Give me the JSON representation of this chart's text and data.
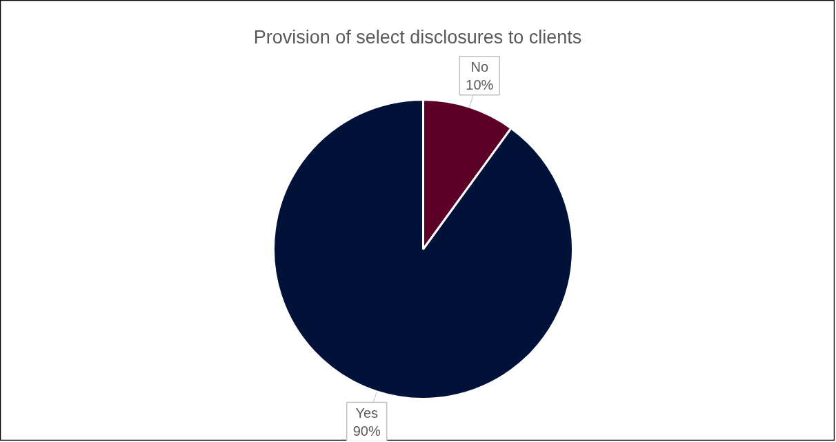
{
  "chart_data": {
    "type": "pie",
    "title": "Provision of select disclosures to clients",
    "categories": [
      "No",
      "Yes"
    ],
    "values": [
      10,
      90
    ],
    "value_labels": [
      "10%",
      "90%"
    ],
    "colors": [
      "#5c0028",
      "#001238"
    ]
  }
}
